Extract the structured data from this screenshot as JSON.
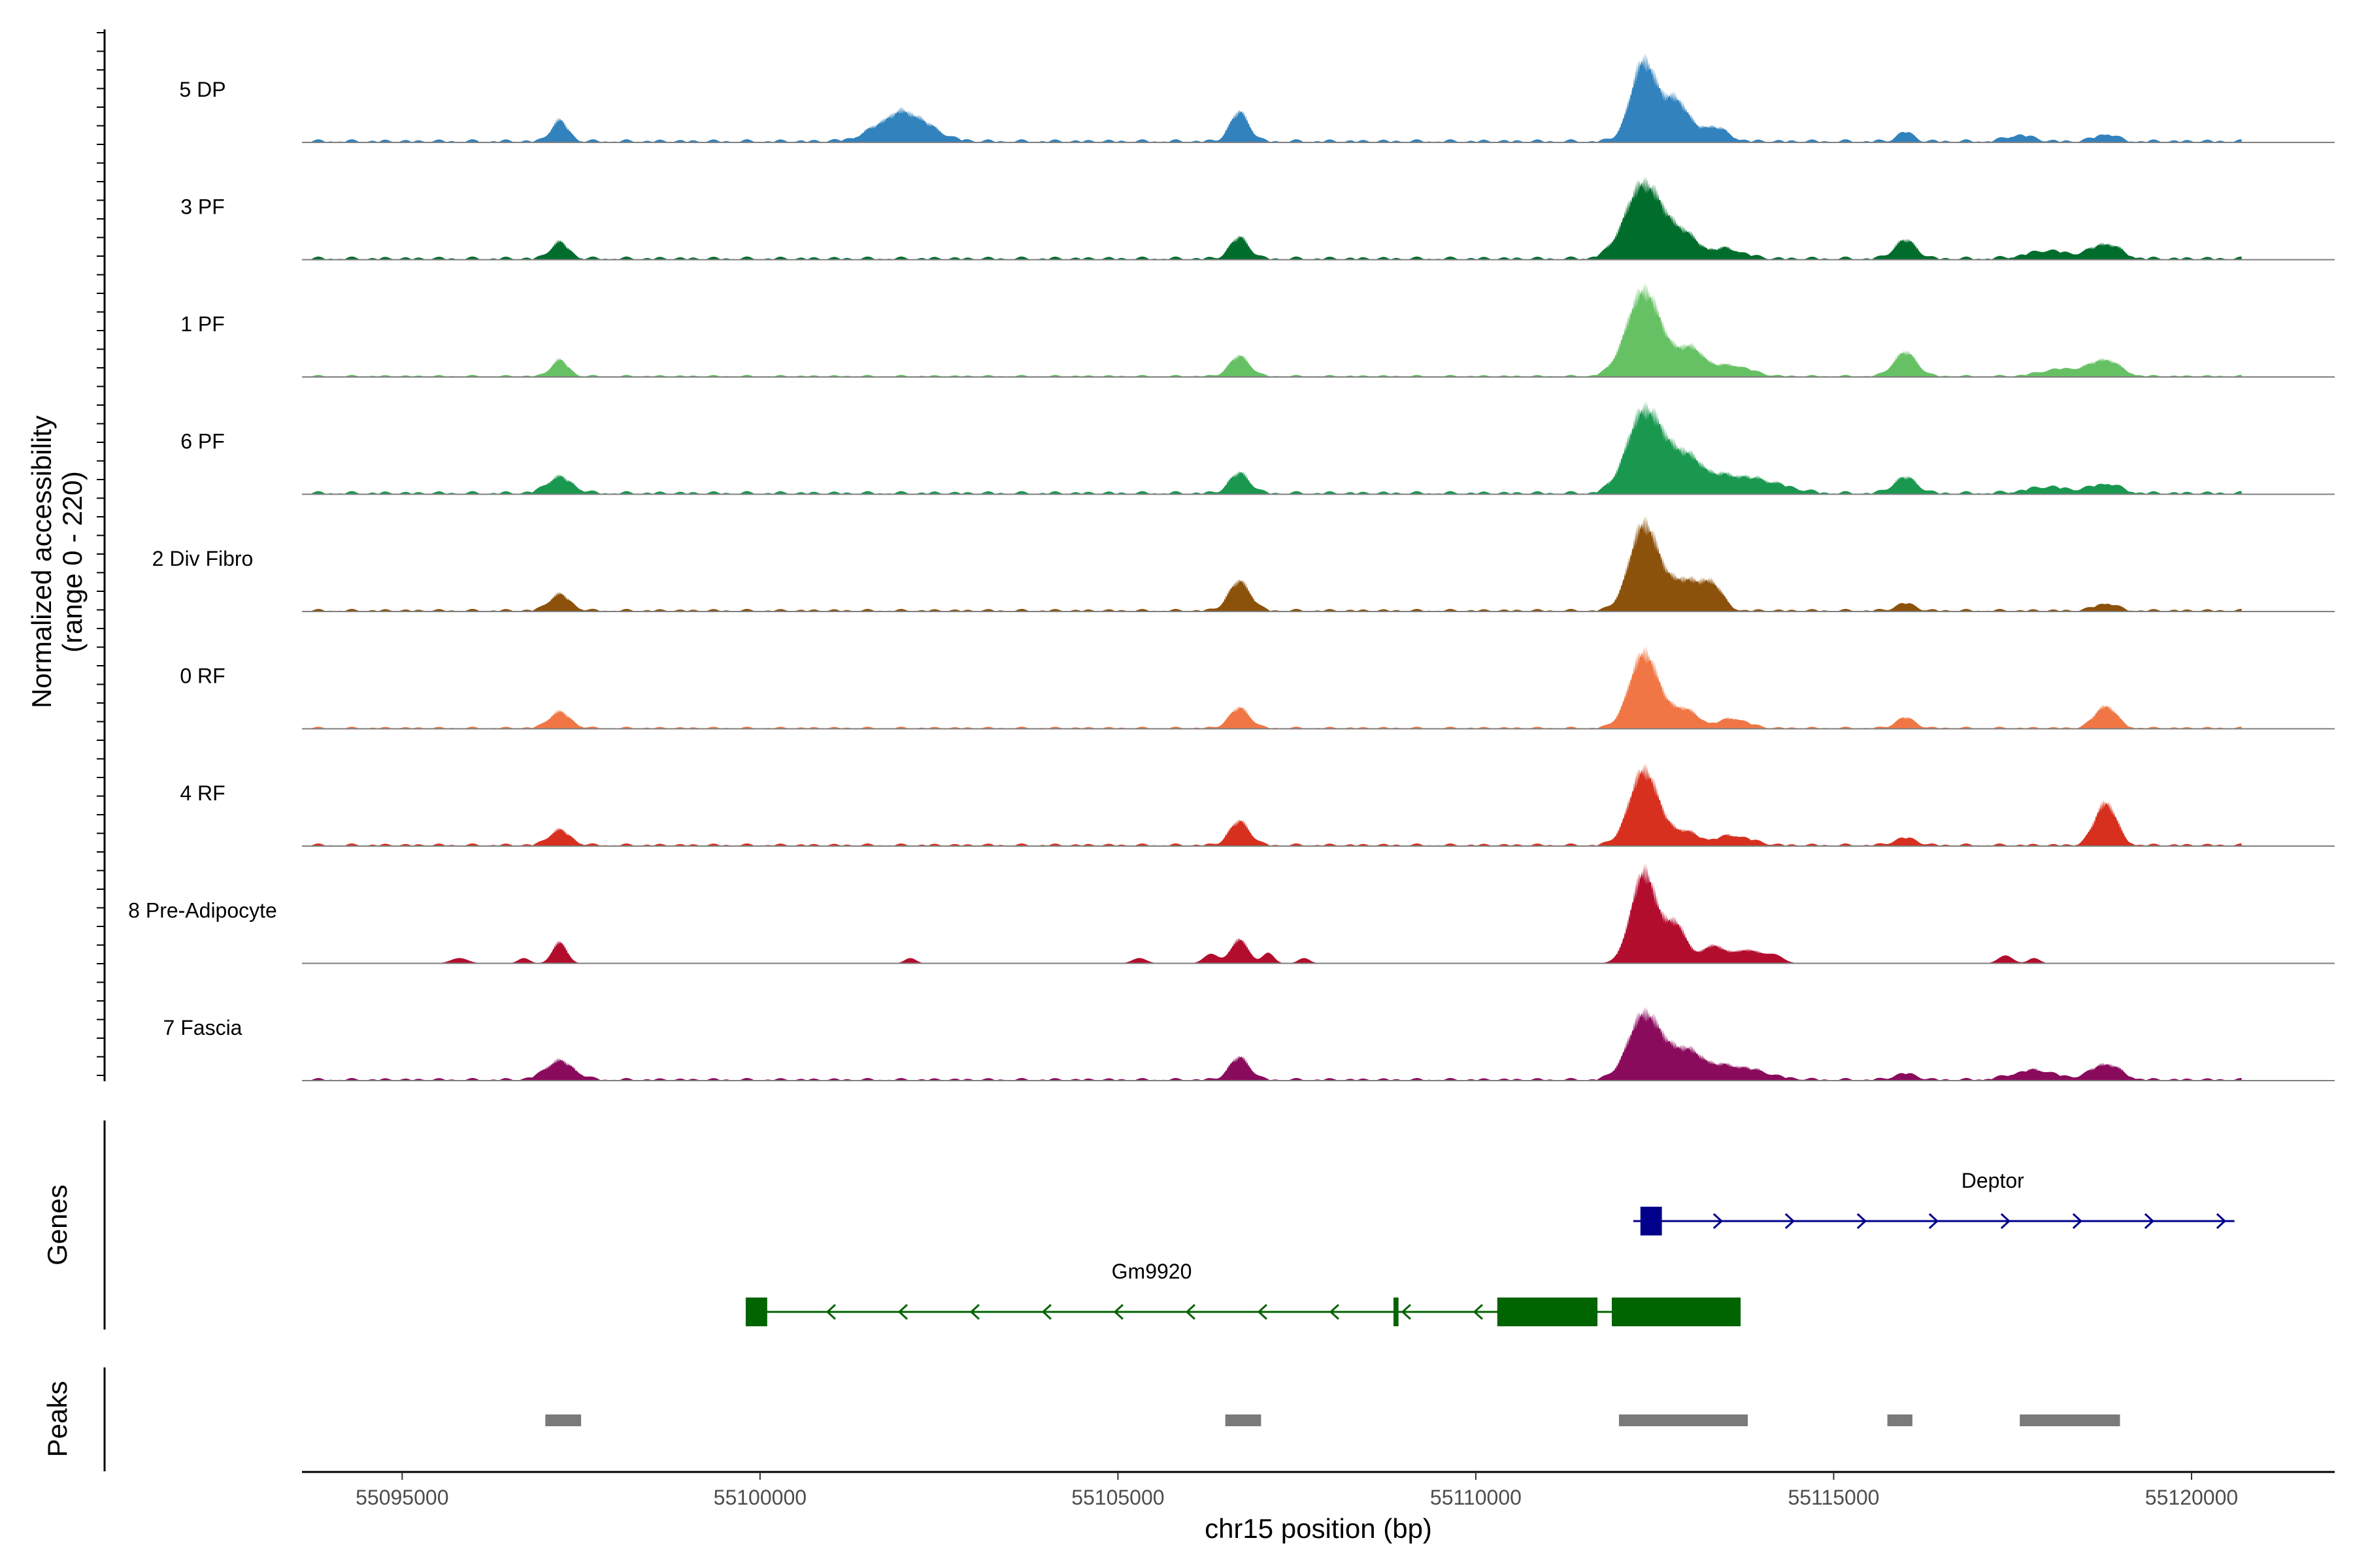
{
  "chart_data": {
    "type": "area",
    "title": "",
    "y_axis_title_lines": [
      "Normalized accessibility",
      "(range 0 - 220)"
    ],
    "ylim": [
      0,
      220
    ],
    "x_axis_title": "chr15 position (bp)",
    "xlim": [
      55093600,
      55122000
    ],
    "x_ticks": [
      55095000,
      55100000,
      55105000,
      55110000,
      55115000,
      55120000
    ],
    "x_tick_labels": [
      "55095000",
      "55100000",
      "55105000",
      "55110000",
      "55115000",
      "55120000"
    ],
    "track_range": [
      55093600,
      55120700
    ],
    "tracks": [
      {
        "name": "5 DP",
        "color": "#3182bd",
        "baseline": 6,
        "peaks": [
          [
            55097200,
            38,
            120
          ],
          [
            55102000,
            55,
            350
          ],
          [
            55106700,
            55,
            130
          ],
          [
            55112350,
            150,
            180
          ],
          [
            55112800,
            75,
            160
          ],
          [
            55113300,
            28,
            200
          ],
          [
            55116000,
            18,
            110
          ],
          [
            55117600,
            12,
            180
          ],
          [
            55118800,
            14,
            150
          ]
        ]
      },
      {
        "name": "3 PF",
        "color": "#006d2c",
        "baseline": 6,
        "peaks": [
          [
            55097200,
            30,
            130
          ],
          [
            55106700,
            40,
            130
          ],
          [
            55112350,
            140,
            260
          ],
          [
            55112900,
            40,
            200
          ],
          [
            55113500,
            18,
            250
          ],
          [
            55116000,
            35,
            150
          ],
          [
            55118000,
            15,
            300
          ],
          [
            55118800,
            28,
            200
          ]
        ]
      },
      {
        "name": "1 PF",
        "color": "#66c164",
        "baseline": 4,
        "peaks": [
          [
            55097200,
            30,
            120
          ],
          [
            55106700,
            38,
            140
          ],
          [
            55112350,
            160,
            240
          ],
          [
            55113000,
            50,
            200
          ],
          [
            55113600,
            20,
            250
          ],
          [
            55116000,
            45,
            160
          ],
          [
            55118200,
            14,
            300
          ],
          [
            55118800,
            30,
            200
          ]
        ]
      },
      {
        "name": "6 PF",
        "color": "#1a9850",
        "baseline": 6,
        "peaks": [
          [
            55097200,
            30,
            180
          ],
          [
            55106700,
            38,
            140
          ],
          [
            55112350,
            150,
            240
          ],
          [
            55112900,
            65,
            260
          ],
          [
            55113600,
            30,
            350
          ],
          [
            55114200,
            12,
            300
          ],
          [
            55116000,
            30,
            160
          ],
          [
            55118000,
            12,
            300
          ],
          [
            55118800,
            18,
            200
          ]
        ]
      },
      {
        "name": "2 Div Fibro",
        "color": "#8c510a",
        "baseline": 5,
        "peaks": [
          [
            55097200,
            30,
            150
          ],
          [
            55106700,
            55,
            150
          ],
          [
            55112350,
            160,
            200
          ],
          [
            55112900,
            55,
            220
          ],
          [
            55113300,
            45,
            150
          ],
          [
            55116000,
            14,
            130
          ],
          [
            55118800,
            14,
            150
          ]
        ]
      },
      {
        "name": "0 RF",
        "color": "#f07745",
        "baseline": 4,
        "peaks": [
          [
            55097200,
            30,
            150
          ],
          [
            55106700,
            38,
            140
          ],
          [
            55112350,
            140,
            200
          ],
          [
            55112900,
            35,
            200
          ],
          [
            55113600,
            18,
            200
          ],
          [
            55116000,
            20,
            130
          ],
          [
            55118800,
            42,
            150
          ]
        ]
      },
      {
        "name": "4 RF",
        "color": "#d7301f",
        "baseline": 5,
        "peaks": [
          [
            55097200,
            28,
            150
          ],
          [
            55106700,
            45,
            140
          ],
          [
            55112350,
            140,
            200
          ],
          [
            55112900,
            25,
            200
          ],
          [
            55113600,
            18,
            250
          ],
          [
            55116000,
            14,
            150
          ],
          [
            55118800,
            80,
            150
          ]
        ]
      },
      {
        "name": "8 Pre-Adipocyte",
        "color": "#b30d2e",
        "baseline": 0,
        "peaks": [
          [
            55095800,
            10,
            120
          ],
          [
            55096700,
            10,
            80
          ],
          [
            55097200,
            40,
            100
          ],
          [
            55102100,
            10,
            80
          ],
          [
            55105300,
            10,
            100
          ],
          [
            55106300,
            18,
            100
          ],
          [
            55106700,
            45,
            120
          ],
          [
            55107100,
            20,
            80
          ],
          [
            55107600,
            10,
            80
          ],
          [
            55112350,
            170,
            180
          ],
          [
            55112800,
            70,
            150
          ],
          [
            55113300,
            30,
            150
          ],
          [
            55113800,
            25,
            250
          ],
          [
            55114200,
            10,
            100
          ],
          [
            55117400,
            15,
            100
          ],
          [
            55117800,
            10,
            80
          ]
        ]
      },
      {
        "name": "7 Fascia",
        "color": "#8a0a5c",
        "baseline": 5,
        "peaks": [
          [
            55097200,
            35,
            200
          ],
          [
            55106700,
            42,
            140
          ],
          [
            55112350,
            120,
            220
          ],
          [
            55112900,
            50,
            250
          ],
          [
            55113600,
            25,
            400
          ],
          [
            55116000,
            12,
            150
          ],
          [
            55117800,
            18,
            300
          ],
          [
            55118800,
            30,
            200
          ]
        ]
      }
    ],
    "genes": [
      {
        "name": "Deptor",
        "strand": "+",
        "color": "#00008b",
        "start": 55112200,
        "end": 55120600,
        "exons": [
          [
            55112300,
            55112600
          ]
        ]
      },
      {
        "name": "Gm9920",
        "strand": "-",
        "color": "#006400",
        "start": 55099800,
        "end": 55113700,
        "exons": [
          [
            55099800,
            55100100
          ],
          [
            55108850,
            55108920
          ],
          [
            55110300,
            55111700
          ],
          [
            55111900,
            55113700
          ]
        ]
      }
    ],
    "peaks_track": [
      [
        55097000,
        55097500
      ],
      [
        55106500,
        55107000
      ],
      [
        55112000,
        55113800
      ],
      [
        55115750,
        55116100
      ],
      [
        55117600,
        55119000
      ]
    ],
    "track_group_labels": [
      "Genes",
      "Peaks"
    ]
  }
}
